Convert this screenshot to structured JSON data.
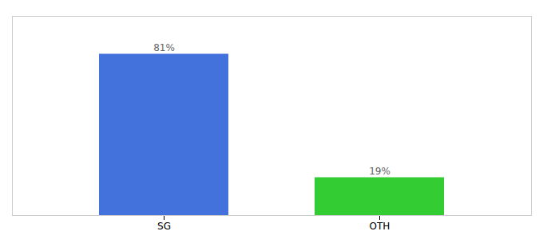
{
  "chart_data": {
    "type": "bar",
    "categories": [
      "SG",
      "OTH"
    ],
    "values": [
      81,
      19
    ],
    "value_labels": [
      "81%",
      "19%"
    ],
    "colors": [
      "#4472dd",
      "#33cc33"
    ],
    "ylim": [
      0,
      100
    ],
    "data_labels": true,
    "tick_labels": "x",
    "grid": false
  }
}
